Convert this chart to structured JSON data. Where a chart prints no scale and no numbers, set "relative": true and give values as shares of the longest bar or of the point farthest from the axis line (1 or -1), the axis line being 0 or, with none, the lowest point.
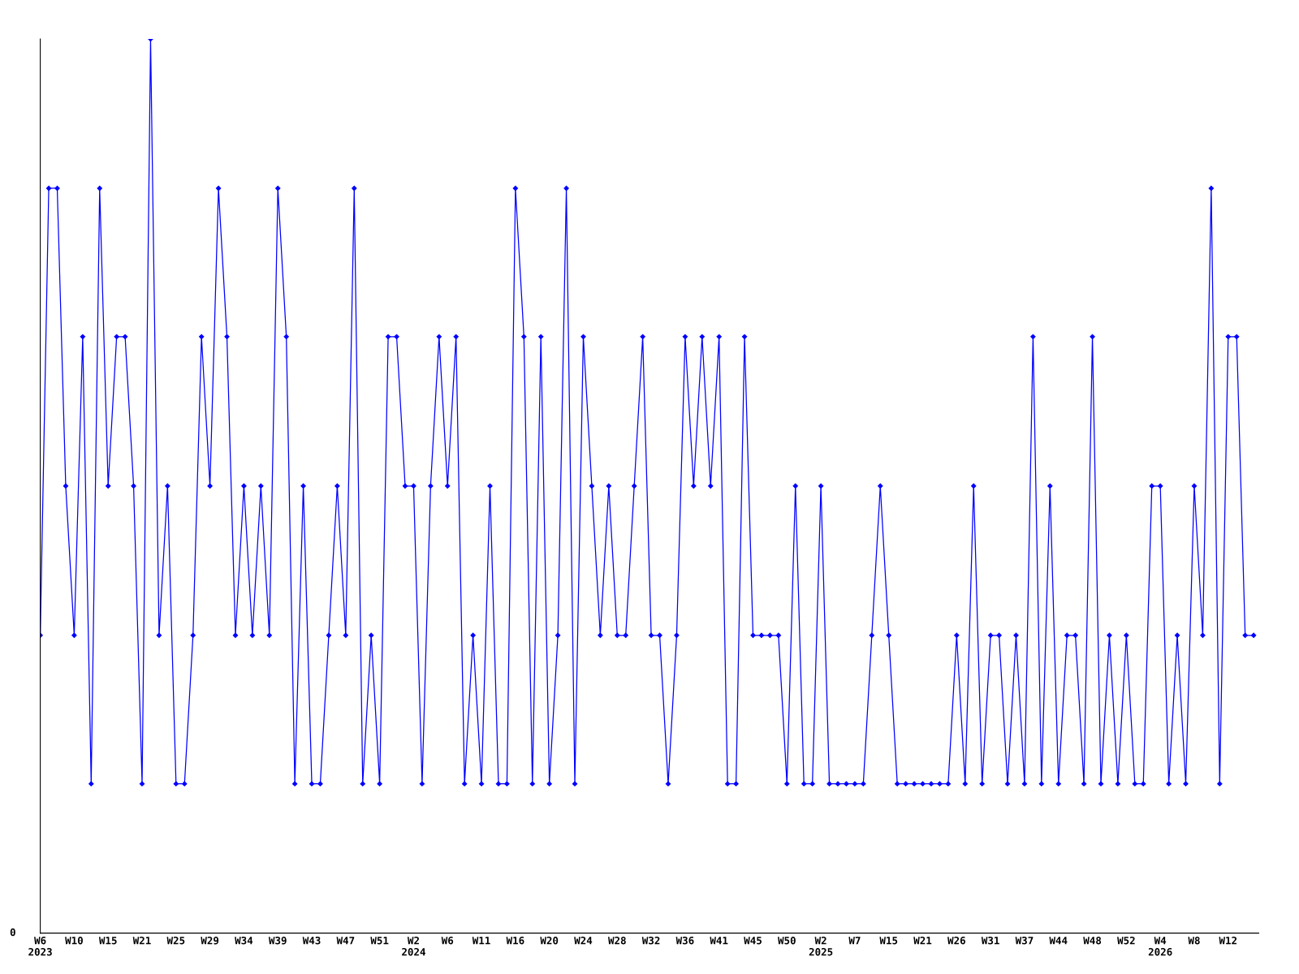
{
  "chart_data": {
    "type": "line",
    "relative": true,
    "color": "#0000ff",
    "marker": "diamond",
    "line_style": "solid",
    "grid": false,
    "legend": false,
    "annotations": [
      "0"
    ],
    "categories": [
      "W6\n2023",
      null,
      null,
      null,
      "W10",
      null,
      null,
      null,
      "W15",
      null,
      null,
      null,
      "W21",
      null,
      null,
      null,
      "W25",
      null,
      null,
      null,
      "W29",
      null,
      null,
      null,
      "W34",
      null,
      null,
      null,
      "W39",
      null,
      null,
      null,
      "W43",
      null,
      null,
      null,
      "W47",
      null,
      null,
      null,
      "W51",
      null,
      null,
      null,
      "W2\n2024",
      null,
      null,
      null,
      "W6",
      null,
      null,
      null,
      "W11",
      null,
      null,
      null,
      "W16",
      null,
      null,
      null,
      "W20",
      null,
      null,
      null,
      "W24",
      null,
      null,
      null,
      "W28",
      null,
      null,
      null,
      "W32",
      null,
      null,
      null,
      "W36",
      null,
      null,
      null,
      "W41",
      null,
      null,
      null,
      "W45",
      null,
      null,
      null,
      "W50",
      null,
      null,
      null,
      "W2\n2025",
      null,
      null,
      null,
      "W7",
      null,
      null,
      null,
      "W15",
      null,
      null,
      null,
      "W21",
      null,
      null,
      null,
      "W26",
      null,
      null,
      null,
      "W31",
      null,
      null,
      null,
      "W37",
      null,
      null,
      null,
      "W44",
      null,
      null,
      null,
      "W48",
      null,
      null,
      null,
      "W52",
      null,
      null,
      null,
      "W4\n2026",
      null,
      null,
      null,
      "W8",
      null,
      null,
      null,
      "W12",
      null,
      null,
      null
    ],
    "values": [
      0.333,
      0.833,
      0.833,
      0.5,
      0.333,
      0.667,
      0.167,
      0.833,
      0.5,
      0.667,
      0.667,
      0.5,
      0.167,
      1,
      0.333,
      0.5,
      0.167,
      0.167,
      0.333,
      0.667,
      0.5,
      0.833,
      0.667,
      0.333,
      0.5,
      0.333,
      0.5,
      0.333,
      0.833,
      0.667,
      0.167,
      0.5,
      0.167,
      0.167,
      0.333,
      0.5,
      0.333,
      0.833,
      0.167,
      0.333,
      0.167,
      0.667,
      0.667,
      0.5,
      0.5,
      0.167,
      0.5,
      0.667,
      0.5,
      0.667,
      0.167,
      0.333,
      0.167,
      0.5,
      0.167,
      0.167,
      0.833,
      0.667,
      0.167,
      0.667,
      0.167,
      0.333,
      0.833,
      0.167,
      0.667,
      0.5,
      0.333,
      0.5,
      0.333,
      0.333,
      0.5,
      0.667,
      0.333,
      0.333,
      0.167,
      0.333,
      0.667,
      0.5,
      0.667,
      0.5,
      0.667,
      0.167,
      0.167,
      0.667,
      0.333,
      0.333,
      0.333,
      0.333,
      0.167,
      0.5,
      0.167,
      0.167,
      0.5,
      0.167,
      0.167,
      0.167,
      0.167,
      0.167,
      0.333,
      0.5,
      0.333,
      0.167,
      0.167,
      0.167,
      0.167,
      0.167,
      0.167,
      0.167,
      0.333,
      0.167,
      0.5,
      0.167,
      0.333,
      0.333,
      0.167,
      0.333,
      0.167,
      0.667,
      0.167,
      0.5,
      0.167,
      0.333,
      0.333,
      0.167,
      0.667,
      0.167,
      0.333,
      0.167,
      0.333,
      0.167,
      0.167,
      0.5,
      0.5,
      0.167,
      0.333,
      0.167,
      0.5,
      0.333,
      0.833,
      0.167,
      0.667,
      0.667,
      0.333,
      0.333
    ]
  }
}
